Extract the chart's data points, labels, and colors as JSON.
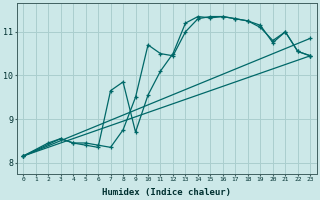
{
  "title": "",
  "xlabel": "Humidex (Indice chaleur)",
  "ylabel": "",
  "bg_color": "#cce8e8",
  "grid_color": "#aacece",
  "line_color": "#006868",
  "xlim": [
    -0.5,
    23.5
  ],
  "ylim": [
    7.75,
    11.65
  ],
  "xticks": [
    0,
    1,
    2,
    3,
    4,
    5,
    6,
    7,
    8,
    9,
    10,
    11,
    12,
    13,
    14,
    15,
    16,
    17,
    18,
    19,
    20,
    21,
    22,
    23
  ],
  "yticks": [
    8,
    9,
    10,
    11
  ],
  "series": [
    {
      "x": [
        0,
        2,
        3,
        4,
        5,
        6,
        7,
        8,
        9,
        10,
        11,
        12,
        13,
        14,
        15,
        16,
        17,
        18,
        19,
        20,
        21,
        22,
        23
      ],
      "y": [
        8.15,
        8.45,
        8.55,
        8.45,
        8.45,
        8.4,
        8.35,
        8.75,
        9.5,
        10.7,
        10.5,
        10.45,
        11.0,
        11.3,
        11.35,
        11.35,
        11.3,
        11.25,
        11.15,
        10.75,
        11.0,
        10.55,
        10.45
      ]
    },
    {
      "x": [
        0,
        3,
        4,
        5,
        6,
        7,
        8,
        9,
        10,
        11,
        12,
        13,
        14,
        15,
        16,
        17,
        18,
        19,
        20,
        21,
        22,
        23
      ],
      "y": [
        8.15,
        8.55,
        8.45,
        8.4,
        8.35,
        9.65,
        9.85,
        8.7,
        9.55,
        10.1,
        10.5,
        11.2,
        11.35,
        11.32,
        11.35,
        11.3,
        11.25,
        11.1,
        10.8,
        11.0,
        10.55,
        10.45
      ]
    },
    {
      "x": [
        0,
        23
      ],
      "y": [
        8.15,
        10.45
      ]
    },
    {
      "x": [
        0,
        23
      ],
      "y": [
        8.15,
        10.85
      ]
    }
  ]
}
